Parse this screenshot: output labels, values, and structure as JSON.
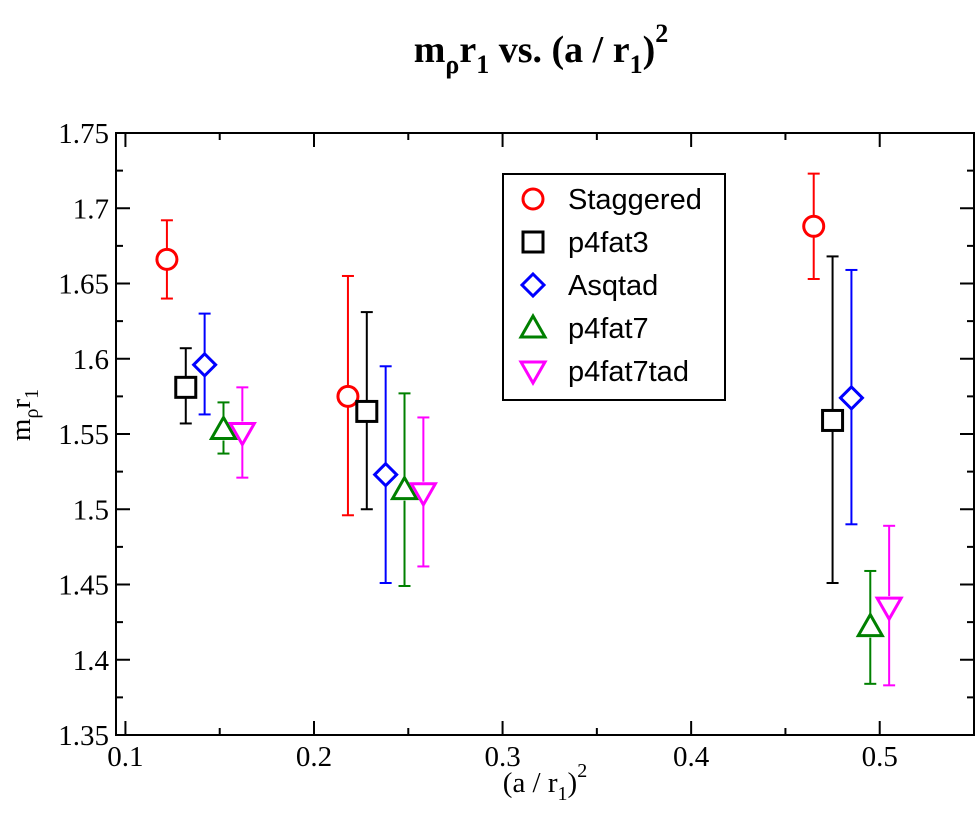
{
  "chart_data": {
    "type": "scatter",
    "title": {
      "main": "m",
      "sub1": "ρ",
      "mid": "r",
      "sub2": "1",
      "tail": " vs. (a / r",
      "sub3": "1",
      "close": ")",
      "sup": "2"
    },
    "xlabel": {
      "main": "(a / r",
      "sub": "1",
      "close": ")",
      "sup": "2"
    },
    "ylabel": {
      "main": "m",
      "sub1": "ρ",
      "mid": "r",
      "sub2": "1"
    },
    "xlim": [
      0.095,
      0.55
    ],
    "ylim": [
      1.35,
      1.75
    ],
    "xticks": [
      0.1,
      0.2,
      0.3,
      0.4,
      0.5
    ],
    "xtick_labels": [
      "0.1",
      "0.2",
      "0.3",
      "0.4",
      "0.5"
    ],
    "yticks": [
      1.35,
      1.4,
      1.45,
      1.5,
      1.55,
      1.6,
      1.65,
      1.7,
      1.75
    ],
    "ytick_labels": [
      "1.35",
      "1.4",
      "1.45",
      "1.5",
      "1.55",
      "1.6",
      "1.65",
      "1.7",
      "1.75"
    ],
    "grid": false,
    "legend_position": "top-right",
    "series": [
      {
        "name": "Staggered",
        "marker": "circle",
        "color": "#ff0000",
        "x": [
          0.122,
          0.218,
          0.465
        ],
        "y": [
          1.666,
          1.575,
          1.688
        ],
        "y_low": [
          1.64,
          1.496,
          1.653
        ],
        "y_high": [
          1.692,
          1.655,
          1.723
        ]
      },
      {
        "name": "p4fat3",
        "marker": "square",
        "color": "#000000",
        "x": [
          0.132,
          0.228,
          0.475
        ],
        "y": [
          1.581,
          1.565,
          1.559
        ],
        "y_low": [
          1.557,
          1.5,
          1.451
        ],
        "y_high": [
          1.607,
          1.631,
          1.668
        ]
      },
      {
        "name": "Asqtad",
        "marker": "diamond",
        "color": "#0000ff",
        "x": [
          0.142,
          0.238,
          0.485
        ],
        "y": [
          1.596,
          1.523,
          1.574
        ],
        "y_low": [
          1.563,
          1.451,
          1.49
        ],
        "y_high": [
          1.63,
          1.595,
          1.659
        ]
      },
      {
        "name": "p4fat7",
        "marker": "triangle-up",
        "color": "#008000",
        "x": [
          0.152,
          0.248,
          0.495
        ],
        "y": [
          1.553,
          1.513,
          1.422
        ],
        "y_low": [
          1.537,
          1.449,
          1.384
        ],
        "y_high": [
          1.571,
          1.577,
          1.459
        ]
      },
      {
        "name": "p4fat7tad",
        "marker": "triangle-down",
        "color": "#ff00ff",
        "x": [
          0.162,
          0.258,
          0.505
        ],
        "y": [
          1.551,
          1.511,
          1.435
        ],
        "y_low": [
          1.521,
          1.462,
          1.383
        ],
        "y_high": [
          1.581,
          1.561,
          1.489
        ]
      }
    ]
  }
}
